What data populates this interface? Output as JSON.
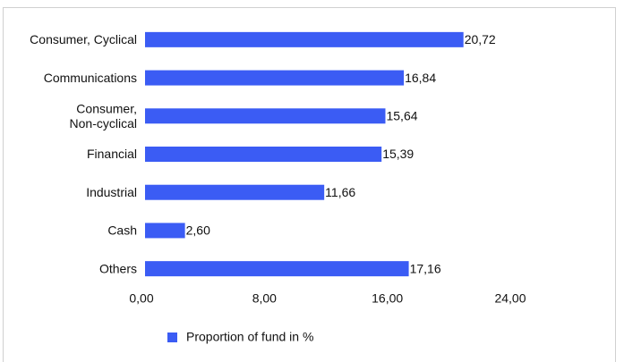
{
  "chart_data": {
    "type": "bar",
    "orientation": "horizontal",
    "categories": [
      "Consumer, Cyclical",
      "Communications",
      "Consumer, Non-cyclical",
      "Financial",
      "Industrial",
      "Cash",
      "Others"
    ],
    "series": [
      {
        "name": "Proportion of fund in %",
        "color": "#3b5cf4",
        "values": [
          20.72,
          16.84,
          15.64,
          15.39,
          11.66,
          2.6,
          17.16
        ],
        "value_labels": [
          "20,72",
          "16,84",
          "15,64",
          "15,39",
          "11,66",
          "2,60",
          "17,16"
        ]
      }
    ],
    "xlim": [
      0,
      24
    ],
    "xticks": [
      {
        "value": 0,
        "label": "0,00"
      },
      {
        "value": 8,
        "label": "8,00"
      },
      {
        "value": 16,
        "label": "16,00"
      },
      {
        "value": 24,
        "label": "24,00"
      }
    ],
    "grid": false,
    "legend": "bottom"
  }
}
